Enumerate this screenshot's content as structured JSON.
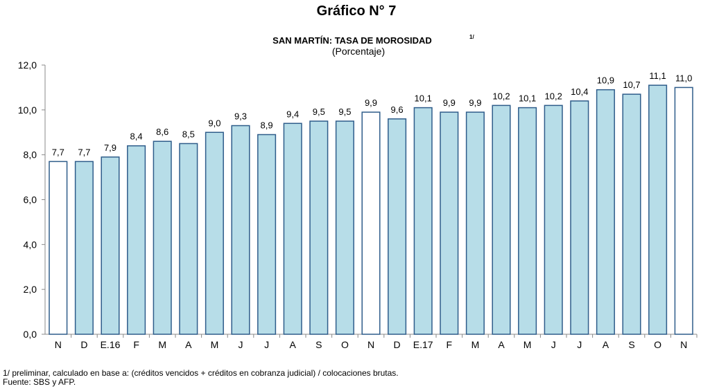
{
  "chart_data": {
    "type": "bar",
    "title": "Gráfico N° 7",
    "subtitle": "SAN MARTÍN: TASA DE MOROSIDAD",
    "subtitle_note": "1/",
    "unit_label": "(Porcentaje)",
    "categories": [
      "N",
      "D",
      "E.16",
      "F",
      "M",
      "A",
      "M",
      "J",
      "J",
      "A",
      "S",
      "O",
      "N",
      "D",
      "E.17",
      "F",
      "M",
      "A",
      "M",
      "J",
      "J",
      "A",
      "S",
      "O",
      "N"
    ],
    "values": [
      7.7,
      7.7,
      7.9,
      8.4,
      8.6,
      8.5,
      9.0,
      9.3,
      8.9,
      9.4,
      9.5,
      9.5,
      9.9,
      9.6,
      10.1,
      9.9,
      9.9,
      10.2,
      10.1,
      10.2,
      10.4,
      10.9,
      10.7,
      11.1,
      11.0
    ],
    "value_labels": [
      "7,7",
      "7,7",
      "7,9",
      "8,4",
      "8,6",
      "8,5",
      "9,0",
      "9,3",
      "8,9",
      "9,4",
      "9,5",
      "9,5",
      "9,9",
      "9,6",
      "10,1",
      "9,9",
      "9,9",
      "10,2",
      "10,1",
      "10,2",
      "10,4",
      "10,9",
      "10,7",
      "11,1",
      "11,0"
    ],
    "colors": [
      "#ffffff",
      "#b7dde8",
      "#b7dde8",
      "#b7dde8",
      "#b7dde8",
      "#b7dde8",
      "#b7dde8",
      "#b7dde8",
      "#b7dde8",
      "#b7dde8",
      "#b7dde8",
      "#b7dde8",
      "#ffffff",
      "#b7dde8",
      "#b7dde8",
      "#b7dde8",
      "#b7dde8",
      "#b7dde8",
      "#b7dde8",
      "#b7dde8",
      "#b7dde8",
      "#b7dde8",
      "#b7dde8",
      "#b7dde8",
      "#ffffff"
    ],
    "edge_color": "#2e5c8a",
    "ylim": [
      0,
      12
    ],
    "yticks": [
      {
        "value": 0,
        "label": "0,0"
      },
      {
        "value": 2,
        "label": "2,0"
      },
      {
        "value": 4,
        "label": "4,0"
      },
      {
        "value": 6,
        "label": "6,0"
      },
      {
        "value": 8,
        "label": "8,0"
      },
      {
        "value": 10,
        "label": "10,0"
      },
      {
        "value": 12,
        "label": "12,0"
      }
    ],
    "grid": false,
    "footnotes": [
      "1/ preliminar, calculado en base a: (créditos vencidos + créditos en cobranza judicial) / colocaciones brutas.",
      "Fuente: SBS  y AFP."
    ]
  }
}
